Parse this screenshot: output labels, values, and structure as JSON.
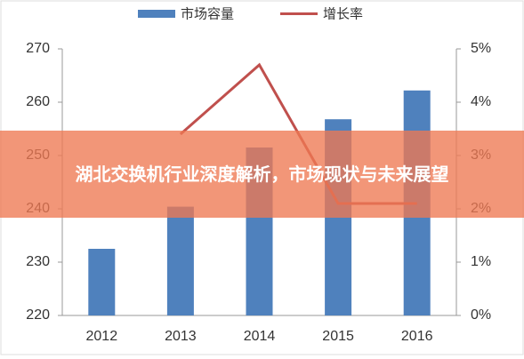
{
  "chart_data": {
    "type": "bar-line",
    "categories": [
      "2012",
      "2013",
      "2014",
      "2015",
      "2016"
    ],
    "series": [
      {
        "name": "市场容量",
        "color": "#4f81bd",
        "type": "bar",
        "values": [
          232.5,
          240.4,
          251.5,
          256.8,
          262.2
        ]
      },
      {
        "name": "增长率",
        "color": "#c0504d",
        "type": "line",
        "axis": "y2",
        "values": [
          null,
          3.4,
          4.7,
          2.1,
          2.1
        ]
      }
    ],
    "ylim": [
      220,
      270
    ],
    "yticks": [
      220,
      230,
      240,
      250,
      260,
      270
    ],
    "y2lim": [
      0,
      5
    ],
    "y2ticks": [
      {
        "value": 0,
        "label": "0%"
      },
      {
        "value": 1,
        "label": "1%"
      },
      {
        "value": 2,
        "label": "2%"
      },
      {
        "value": 3,
        "label": "3%"
      },
      {
        "value": 4,
        "label": "4%"
      },
      {
        "value": 5,
        "label": "5%"
      }
    ],
    "legend": "top"
  },
  "overlay_title": "湖北交换机行业深度解析，市场现状与未来展望"
}
